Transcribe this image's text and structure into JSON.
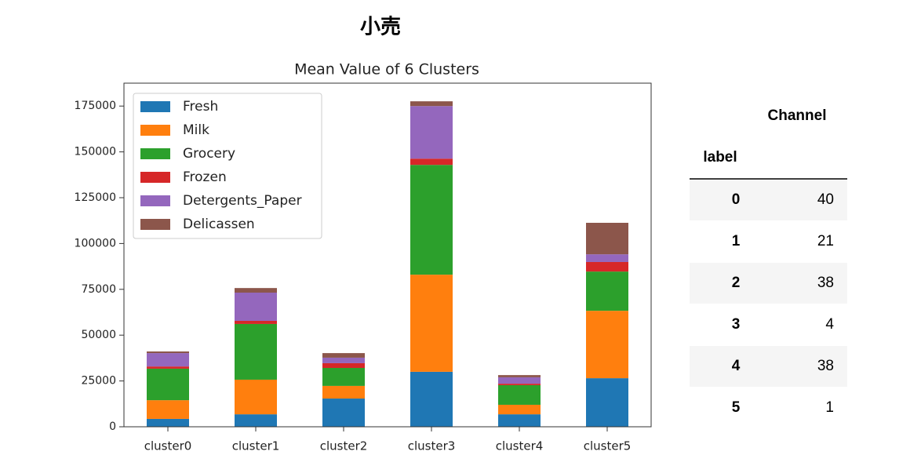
{
  "header": {
    "title": "小売"
  },
  "chart_data": {
    "type": "stacked_bar",
    "title": "Mean Value of 6 Clusters",
    "categories": [
      "cluster0",
      "cluster1",
      "cluster2",
      "cluster3",
      "cluster4",
      "cluster5"
    ],
    "series": [
      {
        "name": "Fresh",
        "color": "#1f77b4",
        "values": [
          4300,
          6800,
          15400,
          30000,
          6800,
          26500
        ]
      },
      {
        "name": "Milk",
        "color": "#ff7f0e",
        "values": [
          10200,
          18900,
          6900,
          53000,
          5200,
          36800
        ]
      },
      {
        "name": "Grocery",
        "color": "#2ca02c",
        "values": [
          17200,
          30400,
          9800,
          59900,
          10700,
          21400
        ]
      },
      {
        "name": "Frozen",
        "color": "#d62728",
        "values": [
          1200,
          1700,
          2600,
          3400,
          800,
          5200
        ]
      },
      {
        "name": "Detergents_Paper",
        "color": "#9467bd",
        "values": [
          7300,
          15400,
          3000,
          28700,
          3500,
          4200
        ]
      },
      {
        "name": "Delicassen",
        "color": "#8c564b",
        "values": [
          900,
          2500,
          2500,
          2600,
          1200,
          17200
        ]
      }
    ],
    "ylim": [
      0,
      187500
    ],
    "yticks": [
      0,
      25000,
      50000,
      75000,
      100000,
      125000,
      150000,
      175000
    ],
    "legend": "upper left",
    "grid": false
  },
  "table": {
    "header": "Channel",
    "index_name": "label",
    "rows": [
      [
        0,
        40
      ],
      [
        1,
        21
      ],
      [
        2,
        38
      ],
      [
        3,
        4
      ],
      [
        4,
        38
      ],
      [
        5,
        1
      ]
    ]
  }
}
